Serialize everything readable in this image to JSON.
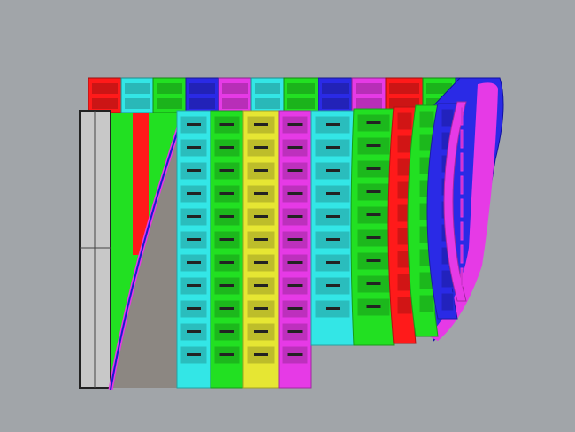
{
  "viewport": {
    "background": "#a1a5a9",
    "panel_colors": {
      "red": "#ff1a1a",
      "cyan": "#33e6e6",
      "green": "#22e022",
      "blue": "#2a2ae6",
      "magenta": "#e63ae6",
      "yellow": "#e6e633",
      "gray": "#8c8782",
      "light_gray": "#c8c8c8"
    },
    "back_row": [
      "red",
      "cyan",
      "green",
      "blue",
      "magenta",
      "cyan",
      "green",
      "blue",
      "magenta",
      "red",
      "green",
      "blue",
      "magenta"
    ],
    "front_columns": [
      "cyan",
      "green",
      "yellow",
      "magenta",
      "cyan",
      "green",
      "red",
      "green",
      "blue",
      "magenta"
    ]
  }
}
